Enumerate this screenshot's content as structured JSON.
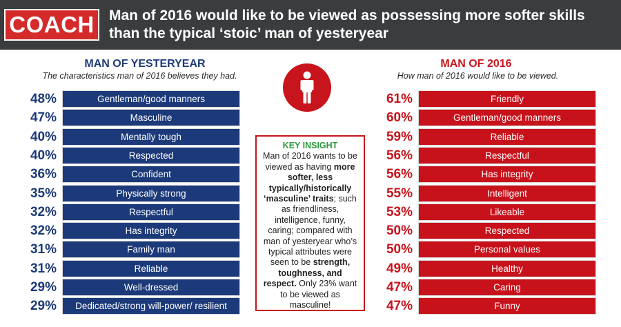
{
  "header": {
    "logo": "COACH",
    "headline": "Man of 2016 would like to be viewed as possessing more softer skills than the typical ‘stoic’ man of yesteryear"
  },
  "colors": {
    "left_accent": "#1c3a7a",
    "right_accent": "#c8121b",
    "insight_title": "#2a9a3c",
    "header_bg": "#3a3c3e"
  },
  "left": {
    "title": "MAN OF YESTERYEAR",
    "subtitle": "The characteristics man of 2016 believes they had."
  },
  "right": {
    "title": "MAN OF 2016",
    "subtitle": "How man of 2016 would like to be viewed."
  },
  "insight": {
    "title": "KEY INSIGHT",
    "p1": "Man of 2016 wants to be viewed as having ",
    "b1": "more softer, less typically/historically ‘masculine’ traits",
    "p2": "; such as friendliness, intelligence, funny, caring; compared with man of yesteryear who’s typical attributes were seen to be ",
    "b2": "strength, toughness, and respect.",
    "p3": " Only 23% want to be viewed as masculine!"
  },
  "icon": "person-icon",
  "chart_data": [
    {
      "type": "bar",
      "title": "MAN OF YESTERYEAR",
      "categories": [
        "Gentleman/good manners",
        "Masculine",
        "Mentally tough",
        "Respected",
        "Confident",
        "Physically strong",
        "Respectful",
        "Has integrity",
        "Family man",
        "Reliable",
        "Well-dressed",
        "Dedicated/strong will-power/ resilient"
      ],
      "values": [
        48,
        47,
        40,
        40,
        36,
        35,
        32,
        32,
        31,
        31,
        29,
        29
      ],
      "labels": [
        "48%",
        "47%",
        "40%",
        "40%",
        "36%",
        "35%",
        "32%",
        "32%",
        "31%",
        "31%",
        "29%",
        "29%"
      ]
    },
    {
      "type": "bar",
      "title": "MAN OF 2016",
      "categories": [
        "Friendly",
        "Gentleman/good manners",
        "Reliable",
        "Respectful",
        "Has integrity",
        "Intelligent",
        "Likeable",
        "Respected",
        "Personal values",
        "Healthy",
        "Caring",
        "Funny"
      ],
      "values": [
        61,
        60,
        59,
        56,
        56,
        55,
        53,
        50,
        50,
        49,
        47,
        47
      ],
      "labels": [
        "61%",
        "60%",
        "59%",
        "56%",
        "56%",
        "55%",
        "53%",
        "50%",
        "50%",
        "49%",
        "47%",
        "47%"
      ]
    }
  ]
}
